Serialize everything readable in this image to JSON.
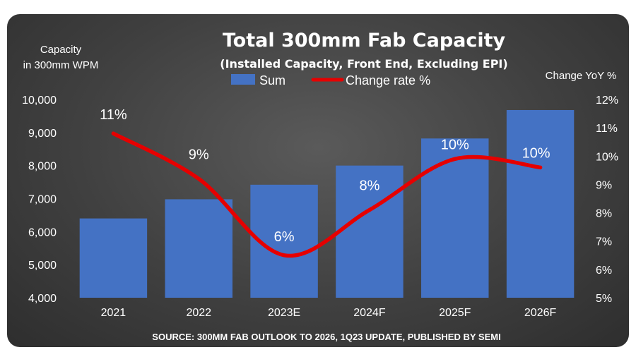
{
  "chart_data": {
    "type": "bar+line",
    "title": "Total 300mm Fab Capacity",
    "subtitle": "(Installed Capacity, Front End, Excluding EPI)",
    "y_left_label_lines": [
      "Capacity",
      "in 300mm WPM"
    ],
    "y_right_label": "Change YoY %",
    "categories": [
      "2021",
      "2022",
      "2023E",
      "2024F",
      "2025F",
      "2026F"
    ],
    "series": [
      {
        "name": "Sum",
        "type": "bar",
        "axis": "left",
        "values": [
          6400,
          6980,
          7420,
          8000,
          8820,
          9680
        ],
        "color": "#4472c4"
      },
      {
        "name": "Change rate %",
        "type": "line",
        "axis": "right",
        "values": [
          10.8,
          9.2,
          6.5,
          8.1,
          9.9,
          9.6
        ],
        "data_labels": [
          "11%",
          "9%",
          "6%",
          "8%",
          "10%",
          "10%"
        ],
        "color": "#e60000"
      }
    ],
    "y_left": {
      "min": 4000,
      "max": 10000,
      "step": 1000,
      "tick_labels": [
        "4,000",
        "5,000",
        "6,000",
        "7,000",
        "8,000",
        "9,000",
        "10,000"
      ]
    },
    "y_right": {
      "min": 5,
      "max": 12,
      "step": 1,
      "tick_labels": [
        "5%",
        "6%",
        "7%",
        "8%",
        "9%",
        "10%",
        "11%",
        "12%"
      ]
    },
    "legend": {
      "position": "top-center"
    },
    "grid": false,
    "source": "SOURCE: 300MM FAB OUTLOOK TO 2026, 1Q23 UPDATE, PUBLISHED BY SEMI"
  }
}
